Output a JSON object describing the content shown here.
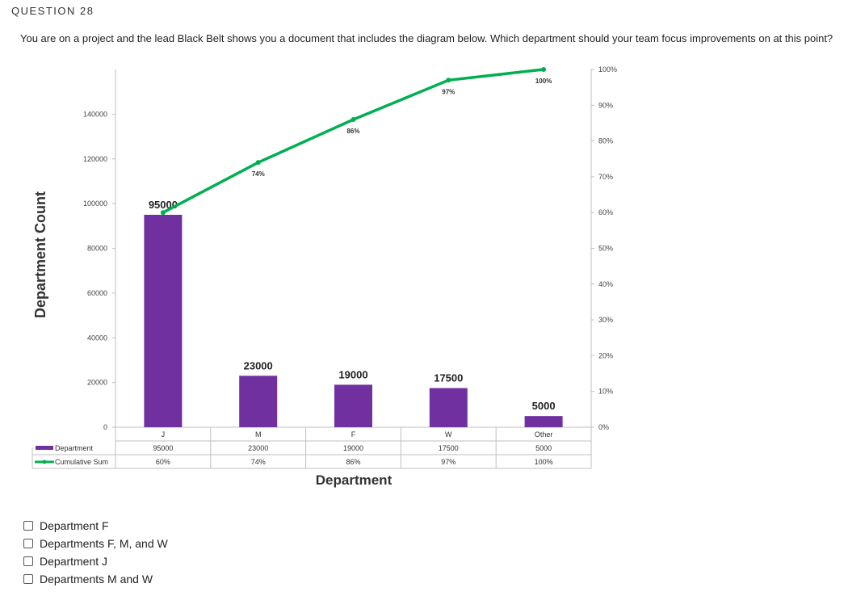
{
  "question": {
    "header": "QUESTION 28",
    "prompt": "You are on a project and the lead Black Belt shows you a document that includes the diagram below. Which department should your team focus improvements on at this point?"
  },
  "options": [
    {
      "label": "Department F"
    },
    {
      "label": "Departments F, M, and W"
    },
    {
      "label": "Department J"
    },
    {
      "label": "Departments M and W"
    }
  ],
  "chart_data": {
    "type": "bar",
    "title": "",
    "xlabel": "Department",
    "ylabel": "Department Count",
    "categories": [
      "J",
      "M",
      "F",
      "W",
      "Other"
    ],
    "series": [
      {
        "name": "Department",
        "kind": "bar",
        "color": "#7030a0",
        "values": [
          95000,
          23000,
          19000,
          17500,
          5000
        ],
        "labels": [
          "95000",
          "23000",
          "19000",
          "17500",
          "5000"
        ]
      },
      {
        "name": "Cumulative Sum",
        "kind": "line",
        "axis": "secondary",
        "color": "#00b050",
        "values": [
          60,
          74,
          86,
          97,
          100
        ],
        "labels": [
          "60%",
          "74%",
          "86%",
          "97%",
          "100%"
        ]
      }
    ],
    "ylim": [
      0,
      160000
    ],
    "yticks": [
      0,
      20000,
      40000,
      60000,
      80000,
      100000,
      120000,
      140000
    ],
    "y2lim": [
      0,
      100
    ],
    "y2ticks": [
      0,
      10,
      20,
      30,
      40,
      50,
      60,
      70,
      80,
      90,
      100
    ],
    "y2ticklabels": [
      "0%",
      "10%",
      "20%",
      "30%",
      "40%",
      "50%",
      "60%",
      "70%",
      "80%",
      "90%",
      "100%"
    ],
    "table": {
      "rows": [
        {
          "legend": "Department",
          "cells": [
            "95000",
            "23000",
            "19000",
            "17500",
            "5000"
          ]
        },
        {
          "legend": "Cumulative Sum",
          "cells": [
            "60%",
            "74%",
            "86%",
            "97%",
            "100%"
          ]
        }
      ]
    }
  }
}
